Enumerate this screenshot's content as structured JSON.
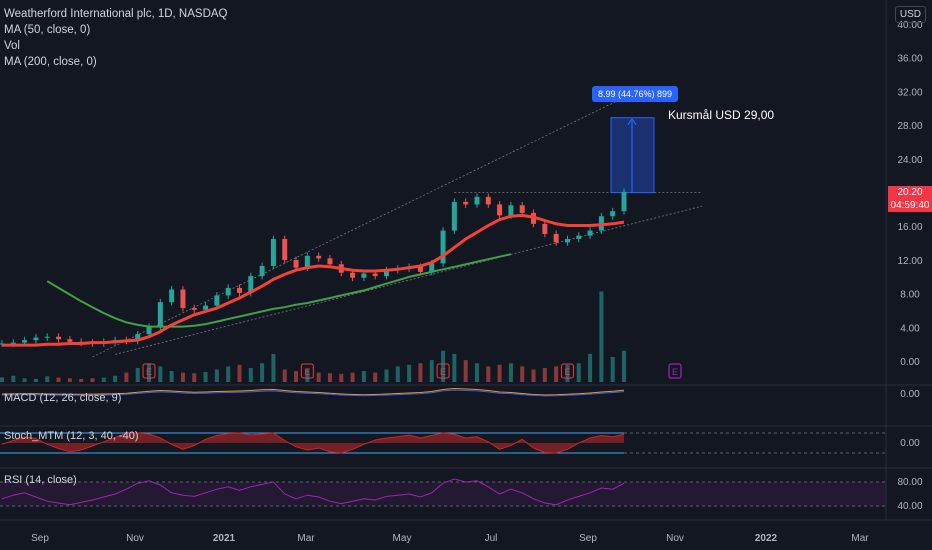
{
  "legend": {
    "title": "Weatherford International plc, 1D, NASDAQ",
    "ma50": "MA (50, close, 0)",
    "vol": "Vol",
    "ma200": "MA (200, close, 0)"
  },
  "currency": "USD",
  "last_price": {
    "value": "20.20",
    "countdown": "04:59:40"
  },
  "measure_label": "8.99 (44.76%) 899",
  "target_label": "Kursmål USD 29,00",
  "panes": {
    "macd": "MACD (12, 26, close, 9)",
    "stoch": "Stoch_MTM (12, 3, 40, -40)",
    "rsi": "RSI (14, close)"
  },
  "colors": {
    "background": "#131722",
    "up": "#26a69a",
    "down": "#ef5350",
    "ma50": "#f44336",
    "ma200": "#43a047",
    "measure": "#2962ff",
    "stoch_up": "#c62828",
    "stoch_down": "#2e7d32",
    "rsi": "#9c27b0",
    "earnings": "#f23645",
    "earnings_next": "#9c27b0"
  },
  "chart_data": {
    "type": "line",
    "x_ticks": [
      "Sep",
      "Nov",
      "2021",
      "Mar",
      "May",
      "Jul",
      "Sep",
      "Nov",
      "2022",
      "Mar"
    ],
    "y_ticks": [
      "40.00",
      "36.00",
      "32.00",
      "28.00",
      "24.00",
      "20.00",
      "16.00",
      "12.00",
      "8.00",
      "4.00",
      "0.00"
    ],
    "ylim": [
      0,
      40
    ],
    "macd_ticks": [
      "0.00"
    ],
    "stoch_ticks": [
      "0.00"
    ],
    "rsi_ticks": [
      "80.00",
      "40.00"
    ],
    "earnings_marker": "E",
    "price": [
      2.2,
      2.3,
      2.6,
      2.9,
      3.0,
      2.7,
      2.4,
      2.3,
      2.2,
      2.4,
      2.6,
      2.5,
      3.3,
      4.2,
      7.1,
      8.6,
      6.4,
      6.2,
      6.7,
      7.9,
      8.8,
      8.2,
      10.2,
      11.4,
      14.6,
      12.1,
      11.2,
      12.6,
      12.3,
      11.6,
      10.6,
      10.0,
      10.5,
      10.2,
      10.9,
      11.1,
      11.3,
      10.7,
      11.7,
      15.6,
      19.0,
      18.7,
      19.6,
      18.7,
      17.4,
      18.6,
      17.7,
      16.4,
      15.2,
      14.2,
      14.6,
      15.0,
      15.6,
      17.3,
      17.9,
      20.2
    ],
    "ma50": [
      2.0,
      2.0,
      2.0,
      2.0,
      2.1,
      2.1,
      2.2,
      2.2,
      2.3,
      2.3,
      2.4,
      2.5,
      2.6,
      3.0,
      3.6,
      4.4,
      5.0,
      5.6,
      6.0,
      6.4,
      7.0,
      7.6,
      8.3,
      9.0,
      9.8,
      10.4,
      10.9,
      11.2,
      11.4,
      11.3,
      11.1,
      10.9,
      10.8,
      10.8,
      10.9,
      11.0,
      11.2,
      11.4,
      11.8,
      12.6,
      13.6,
      14.6,
      15.4,
      16.2,
      16.9,
      17.3,
      17.4,
      17.2,
      16.8,
      16.4,
      16.2,
      16.2,
      16.2,
      16.3,
      16.4,
      16.6
    ],
    "ma200_start_index": 4,
    "ma200": [
      9.6,
      8.8,
      8.0,
      7.2,
      6.5,
      5.8,
      5.2,
      4.7,
      4.4,
      4.2,
      4.2,
      4.2,
      4.2,
      4.3,
      4.5,
      4.8,
      5.1,
      5.4,
      5.7,
      6.0,
      6.3,
      6.5,
      6.8,
      7.0,
      7.3,
      7.6,
      7.9,
      8.2,
      8.5,
      8.9,
      9.3,
      9.7,
      10.1,
      10.4,
      10.7,
      11.0,
      11.3,
      11.6,
      11.9,
      12.2,
      12.5,
      12.8
    ],
    "volume": [
      0.15,
      0.2,
      0.12,
      0.1,
      0.18,
      0.14,
      0.12,
      0.1,
      0.12,
      0.14,
      0.2,
      0.3,
      0.45,
      0.6,
      0.5,
      0.35,
      0.3,
      0.28,
      0.32,
      0.4,
      0.5,
      0.55,
      0.45,
      0.6,
      0.9,
      0.4,
      0.35,
      0.42,
      0.3,
      0.28,
      0.26,
      0.3,
      0.35,
      0.3,
      0.4,
      0.5,
      0.55,
      0.6,
      0.7,
      1.0,
      0.9,
      0.7,
      0.6,
      0.5,
      0.55,
      0.6,
      0.5,
      0.4,
      0.45,
      0.5,
      0.55,
      0.6,
      0.9,
      2.9,
      0.8,
      1.0
    ],
    "macd": [
      0.0,
      0.02,
      0.05,
      0.04,
      0.0,
      -0.03,
      -0.05,
      -0.04,
      -0.02,
      0.0,
      0.05,
      0.15,
      0.35,
      0.55,
      0.7,
      0.6,
      0.45,
      0.35,
      0.4,
      0.5,
      0.55,
      0.6,
      0.7,
      0.85,
      0.9,
      0.7,
      0.5,
      0.4,
      0.3,
      0.15,
      0.0,
      -0.1,
      -0.15,
      -0.1,
      0.0,
      0.1,
      0.2,
      0.3,
      0.5,
      0.9,
      1.1,
      1.0,
      0.9,
      0.7,
      0.4,
      0.3,
      0.1,
      -0.1,
      -0.2,
      -0.15,
      -0.05,
      0.05,
      0.2,
      0.4,
      0.55,
      0.75
    ],
    "stoch": [
      -5,
      10,
      25,
      18,
      -5,
      -22,
      -35,
      -28,
      -12,
      5,
      22,
      38,
      40,
      36,
      20,
      -5,
      -25,
      -10,
      15,
      30,
      38,
      40,
      32,
      36,
      40,
      10,
      -15,
      -28,
      -20,
      -35,
      -40,
      -25,
      -5,
      12,
      20,
      25,
      32,
      20,
      30,
      40,
      35,
      20,
      25,
      5,
      -25,
      -10,
      15,
      -20,
      -38,
      -40,
      -25,
      0,
      20,
      30,
      25,
      35
    ],
    "rsi": [
      52,
      58,
      62,
      55,
      48,
      45,
      42,
      46,
      50,
      55,
      60,
      68,
      78,
      82,
      75,
      62,
      58,
      56,
      62,
      68,
      72,
      66,
      72,
      76,
      80,
      60,
      52,
      58,
      55,
      48,
      44,
      48,
      52,
      50,
      56,
      58,
      60,
      55,
      62,
      78,
      85,
      80,
      82,
      72,
      60,
      68,
      62,
      52,
      45,
      42,
      50,
      56,
      62,
      70,
      68,
      78
    ]
  }
}
